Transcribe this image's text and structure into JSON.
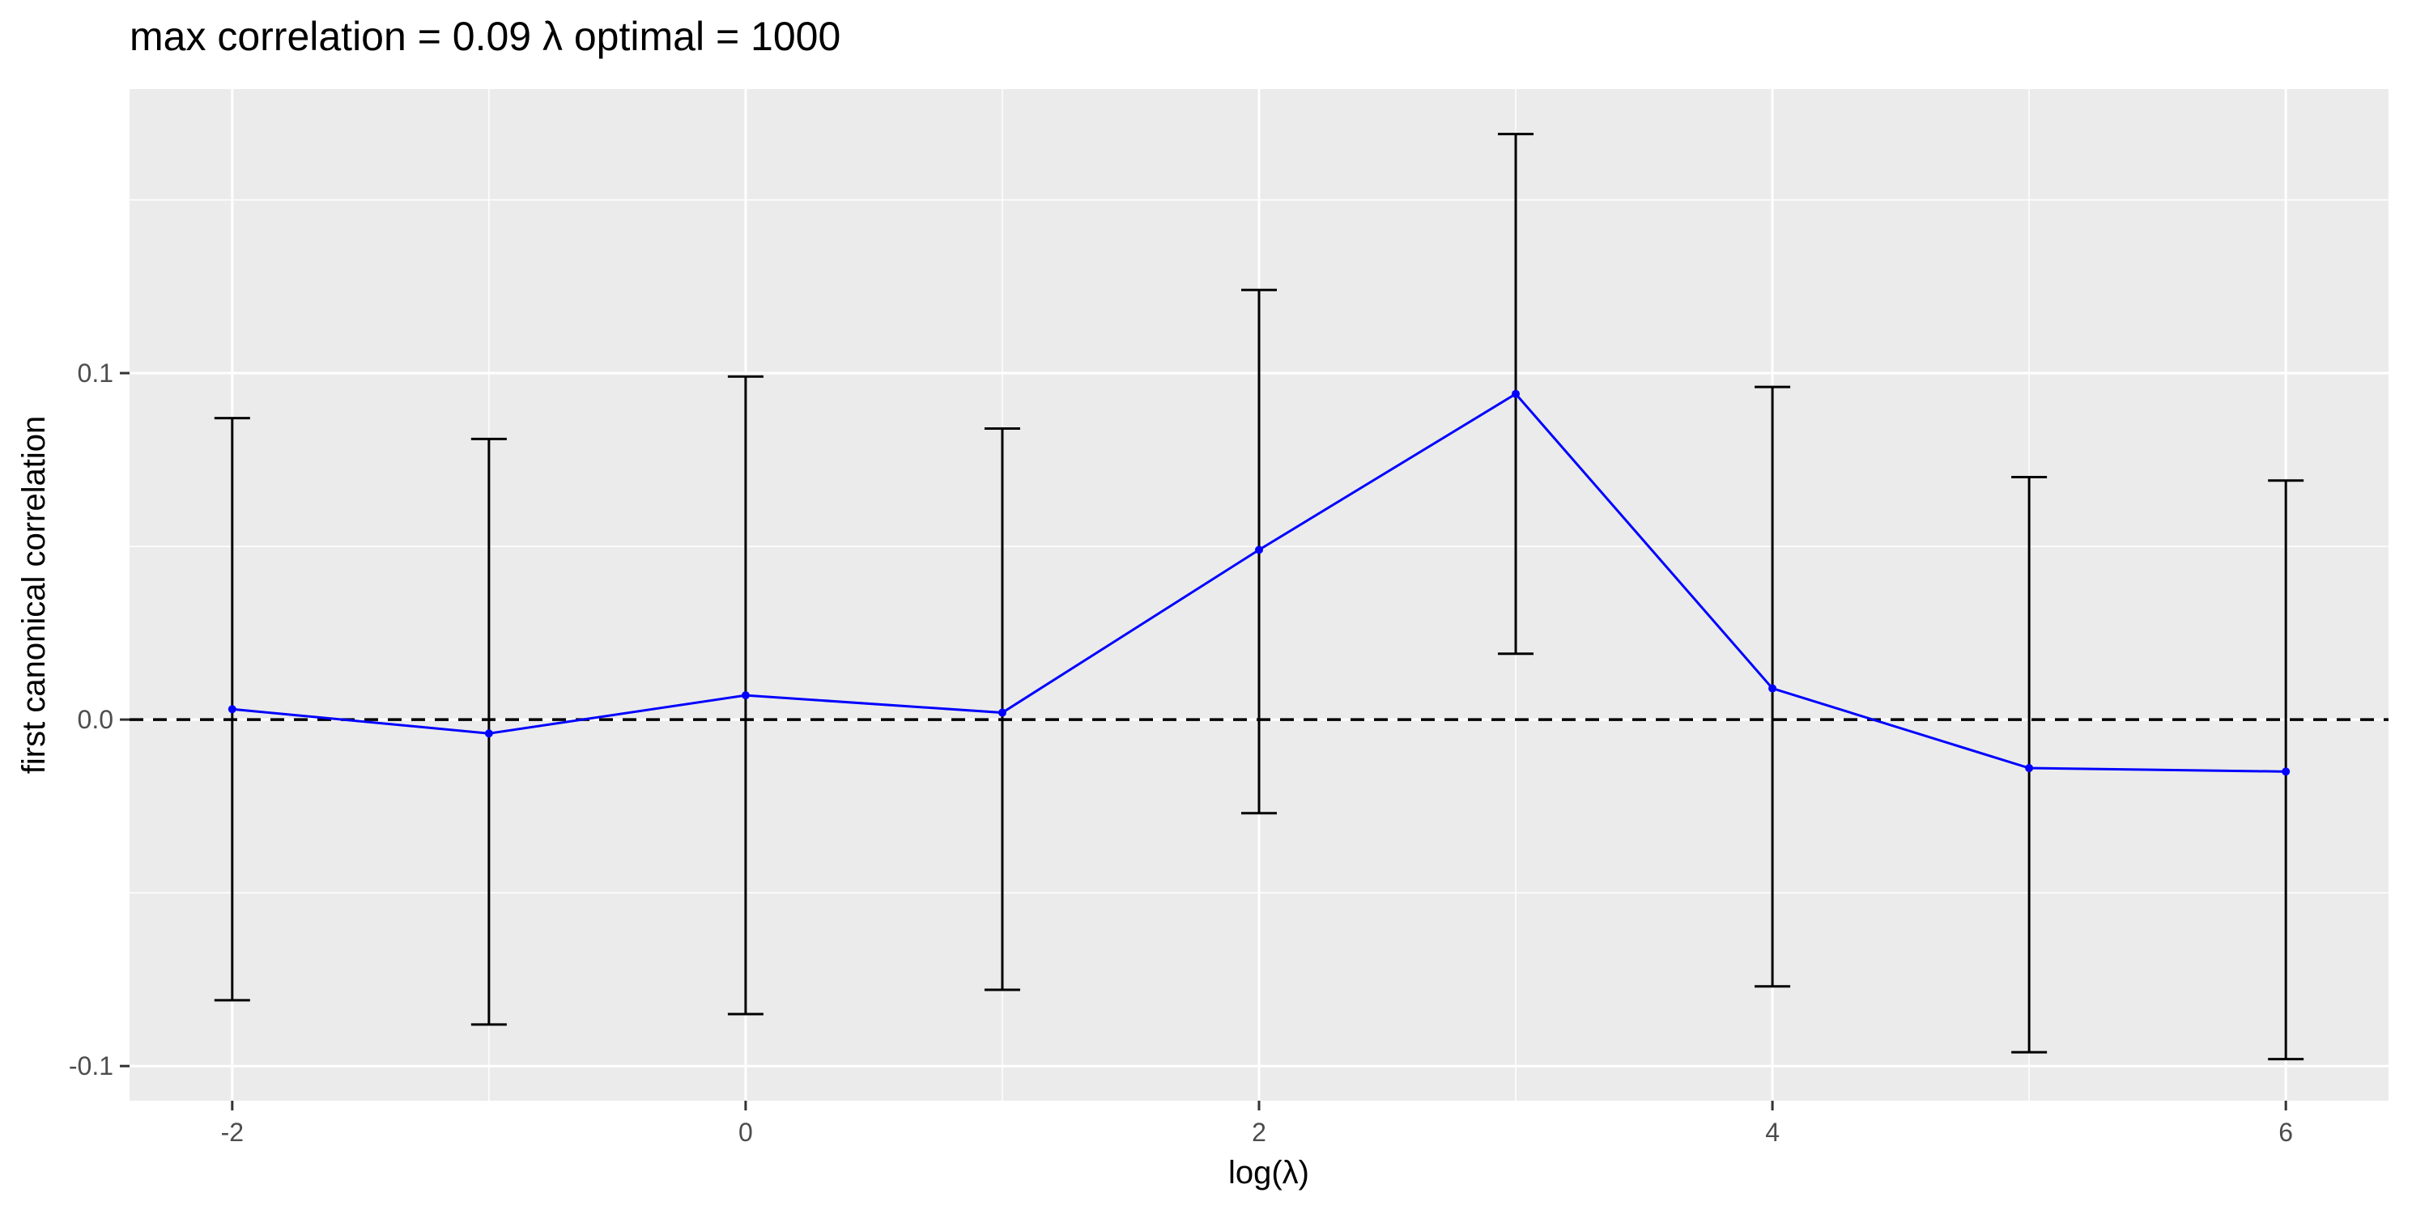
{
  "chart_data": {
    "type": "line",
    "title": "max correlation = 0.09     λ optimal = 1000",
    "xlabel": "log(λ)",
    "ylabel": "first canonical correlation",
    "xlim": [
      -2.4,
      6.4
    ],
    "ylim": [
      -0.11,
      0.182
    ],
    "x_ticks": [
      -2,
      0,
      2,
      4,
      6
    ],
    "x_tick_labels": [
      "-2",
      "0",
      "2",
      "4",
      "6"
    ],
    "y_ticks": [
      -0.1,
      0.0,
      0.1
    ],
    "y_tick_labels": [
      "-0.1",
      "0.0",
      "0.1"
    ],
    "grid": true,
    "legend": "none",
    "reference_line": {
      "y": 0.0,
      "style": "dashed",
      "color": "#000000"
    },
    "series": [
      {
        "line_color": "#0000ff",
        "errorbar_color": "#000000",
        "x": [
          -2,
          -1,
          0,
          1,
          2,
          3,
          4,
          5,
          6
        ],
        "y": [
          0.003,
          -0.004,
          0.007,
          0.002,
          0.049,
          0.094,
          0.009,
          -0.014,
          -0.015
        ],
        "y_lower": [
          -0.081,
          -0.088,
          -0.085,
          -0.078,
          -0.027,
          0.019,
          -0.077,
          -0.096,
          -0.098
        ],
        "y_upper": [
          0.087,
          0.081,
          0.099,
          0.084,
          0.124,
          0.169,
          0.096,
          0.07,
          0.069
        ]
      }
    ]
  }
}
